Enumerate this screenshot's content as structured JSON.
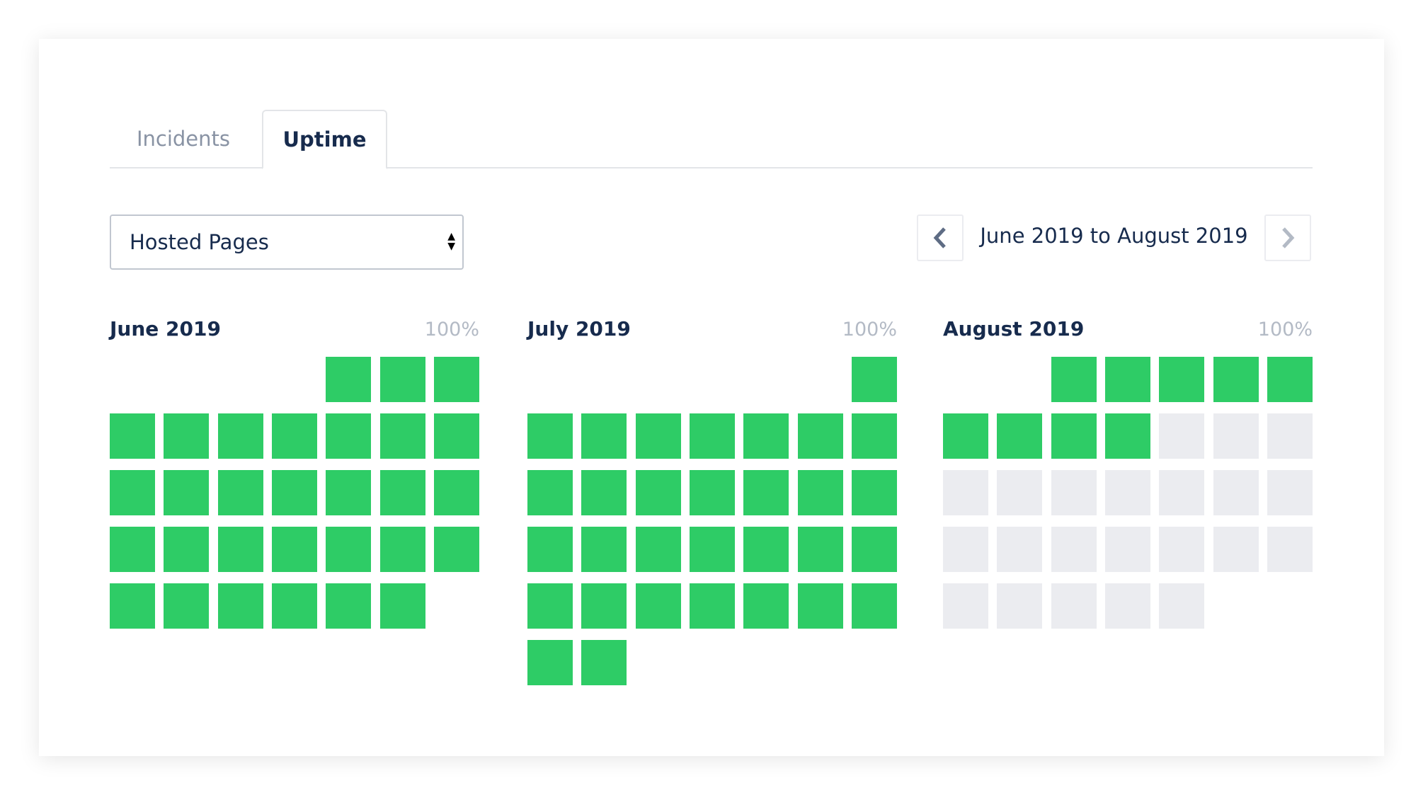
{
  "tabs": [
    {
      "label": "Incidents",
      "active": false
    },
    {
      "label": "Uptime",
      "active": true
    }
  ],
  "component_select": {
    "value": "Hosted Pages"
  },
  "date_range": {
    "label": "June 2019 to August 2019",
    "prev_icon": "chevron-left-icon",
    "next_icon": "chevron-right-icon"
  },
  "colors": {
    "operational": "#2ecc66",
    "no_data": "#ebecf0",
    "text": "#172b4d",
    "muted": "#b3bac5"
  },
  "months": [
    {
      "name": "June 2019",
      "uptime": "100%",
      "first_weekday_column": 4,
      "days": 30,
      "days_with_data": 30
    },
    {
      "name": "July 2019",
      "uptime": "100%",
      "first_weekday_column": 6,
      "days": 31,
      "days_with_data": 31
    },
    {
      "name": "August 2019",
      "uptime": "100%",
      "first_weekday_column": 2,
      "days": 31,
      "days_with_data": 9
    }
  ]
}
